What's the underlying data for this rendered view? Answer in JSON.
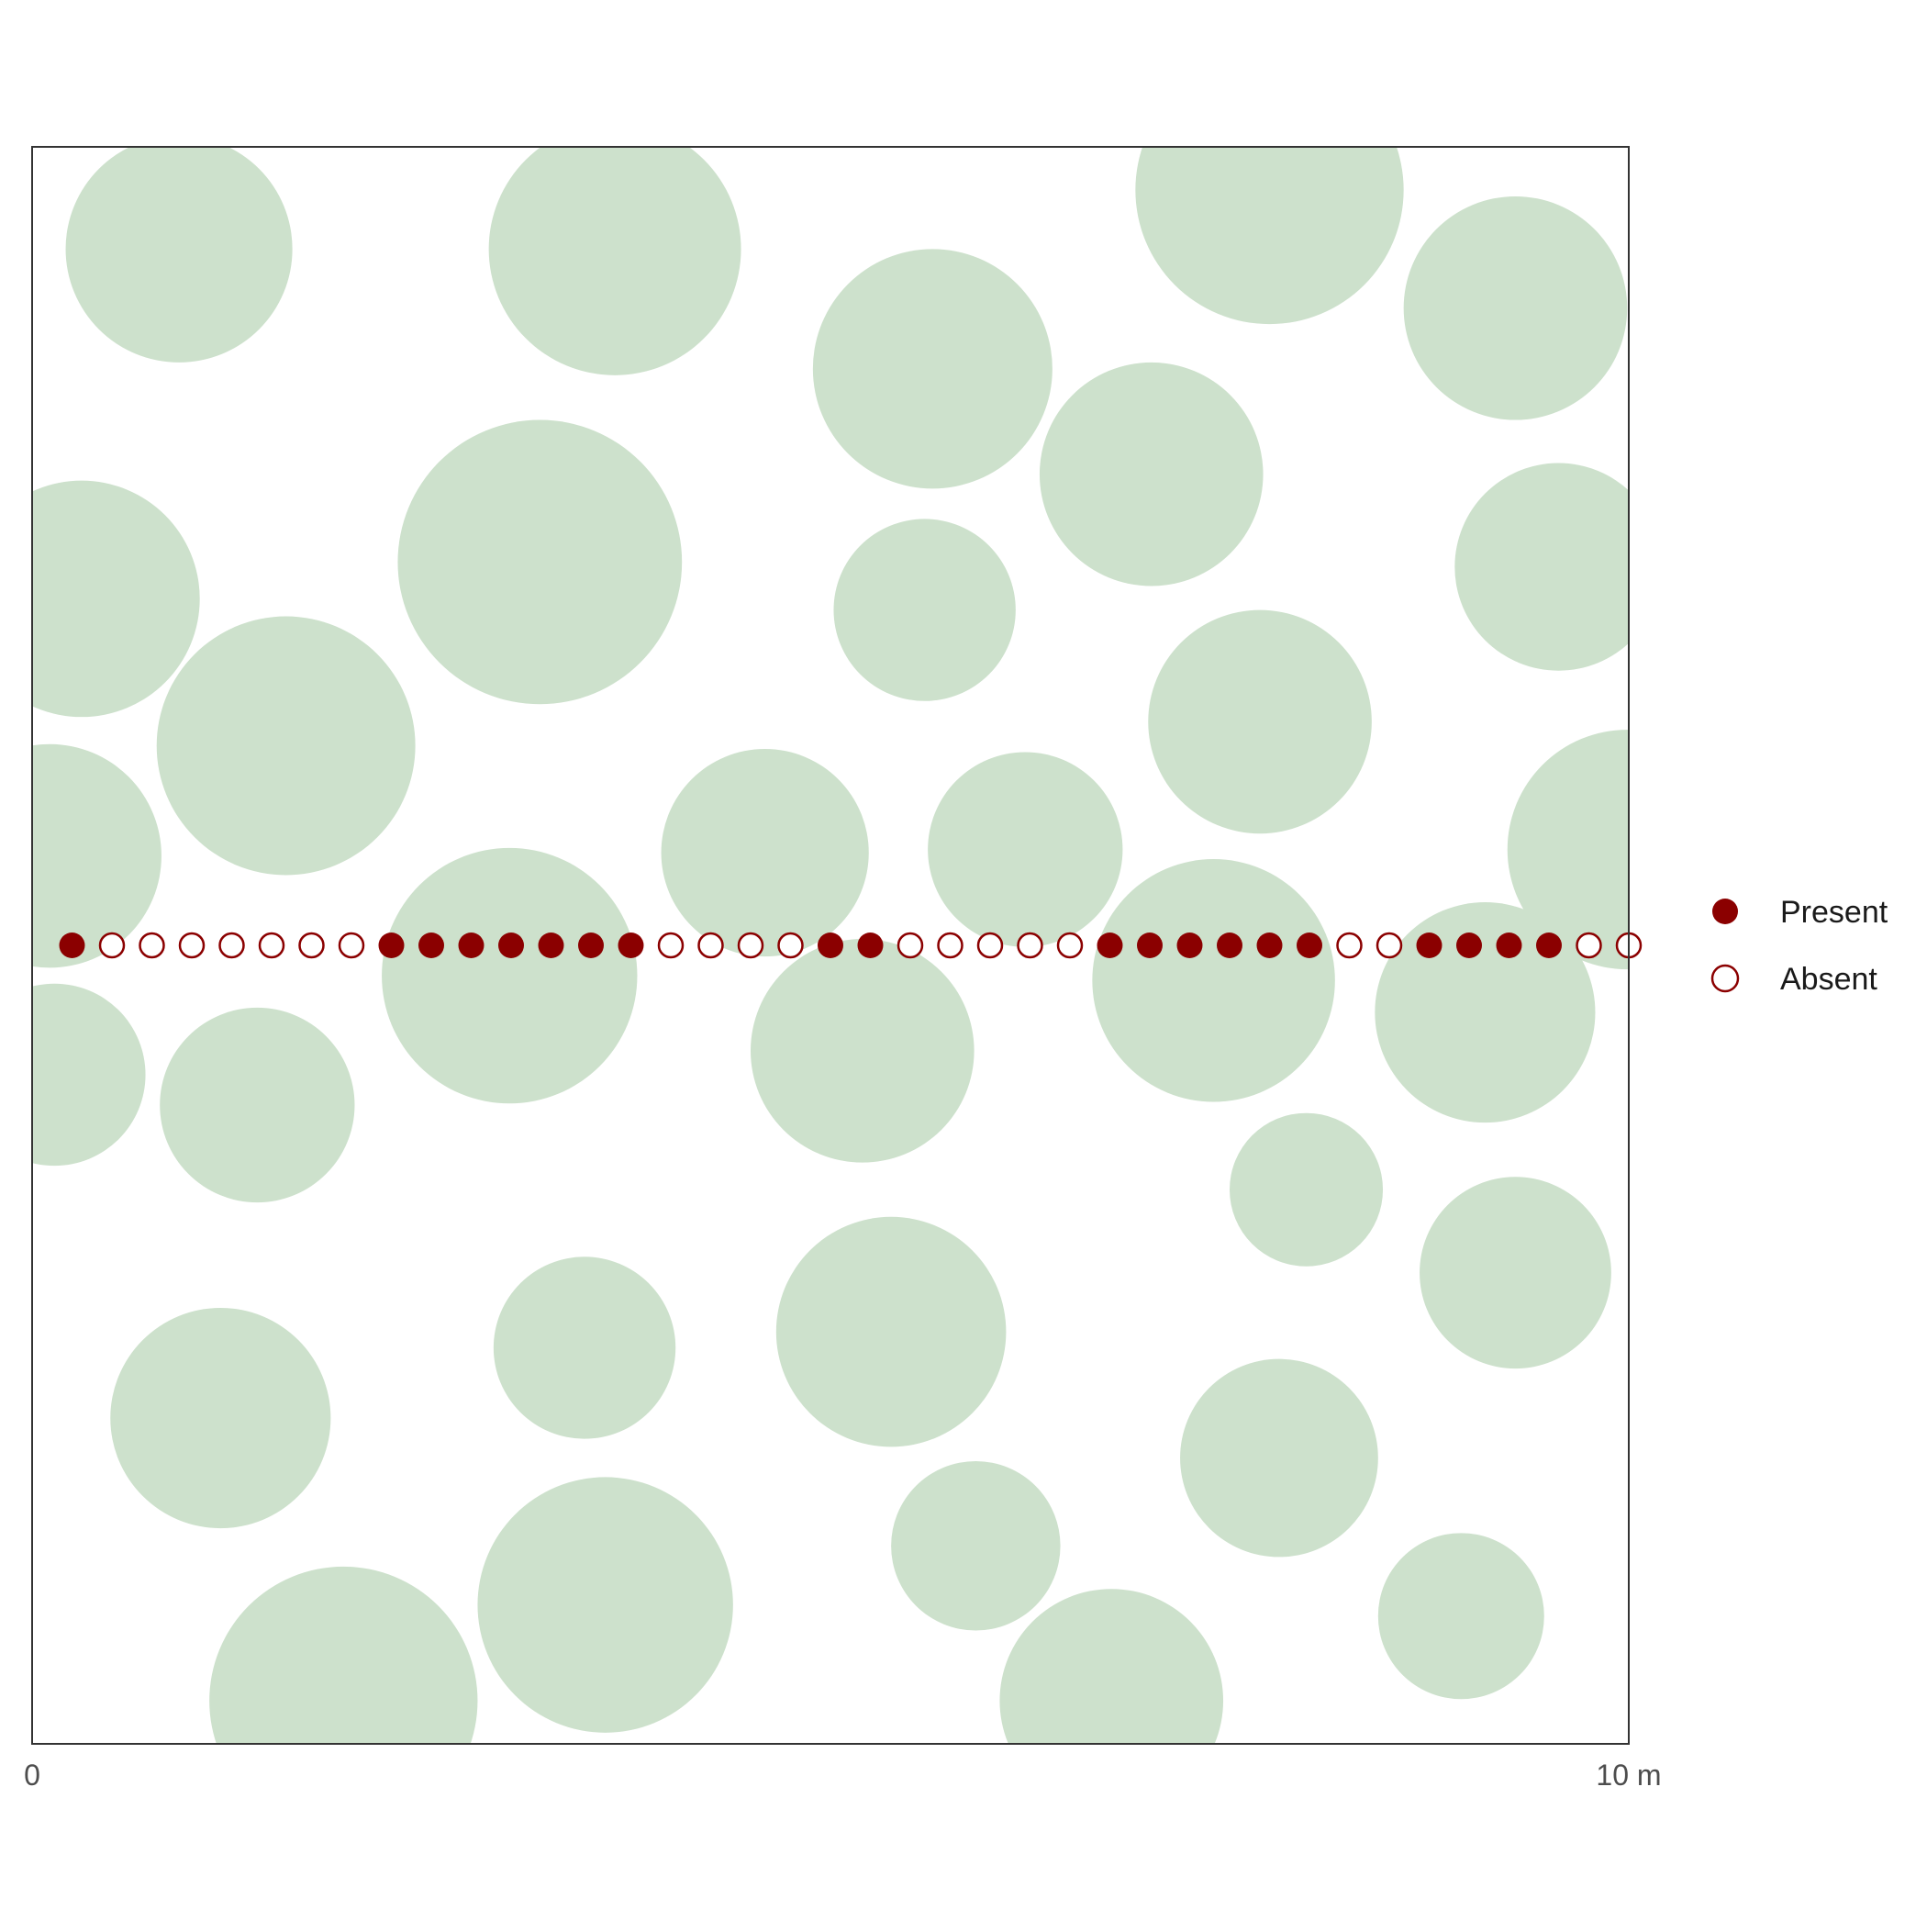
{
  "chart_data": {
    "type": "scatter",
    "xlabel": "",
    "ylabel": "",
    "xlim": [
      0,
      10
    ],
    "ylim": [
      0,
      10
    ],
    "x_tick_labels": [
      "0",
      "10 m"
    ],
    "grid": false,
    "legend_position": "right",
    "colors": {
      "canopy": "#cde1cc",
      "point": "#8b0000",
      "frame": "#333333"
    },
    "legend": [
      {
        "label": "Present",
        "marker": "filled"
      },
      {
        "label": "Absent",
        "marker": "open"
      }
    ],
    "canopy_circles": [
      {
        "x": 0.92,
        "y": 9.36,
        "r": 0.71
      },
      {
        "x": 3.65,
        "y": 9.36,
        "r": 0.79
      },
      {
        "x": 5.64,
        "y": 8.61,
        "r": 0.75
      },
      {
        "x": 7.75,
        "y": 9.73,
        "r": 0.84
      },
      {
        "x": 9.29,
        "y": 8.99,
        "r": 0.7
      },
      {
        "x": 0.31,
        "y": 7.17,
        "r": 0.74
      },
      {
        "x": 3.18,
        "y": 7.4,
        "r": 0.89
      },
      {
        "x": 7.01,
        "y": 7.95,
        "r": 0.7
      },
      {
        "x": 5.59,
        "y": 7.1,
        "r": 0.57
      },
      {
        "x": 9.56,
        "y": 7.37,
        "r": 0.65
      },
      {
        "x": 1.59,
        "y": 6.25,
        "r": 0.81
      },
      {
        "x": 7.69,
        "y": 6.4,
        "r": 0.7
      },
      {
        "x": 0.11,
        "y": 5.56,
        "r": 0.7
      },
      {
        "x": 4.59,
        "y": 5.58,
        "r": 0.65
      },
      {
        "x": 6.22,
        "y": 5.6,
        "r": 0.61
      },
      {
        "x": 9.99,
        "y": 5.6,
        "r": 0.75
      },
      {
        "x": 2.99,
        "y": 4.81,
        "r": 0.8
      },
      {
        "x": 7.4,
        "y": 4.78,
        "r": 0.76
      },
      {
        "x": 9.1,
        "y": 4.58,
        "r": 0.69
      },
      {
        "x": 0.14,
        "y": 4.19,
        "r": 0.57
      },
      {
        "x": 1.41,
        "y": 4.0,
        "r": 0.61
      },
      {
        "x": 5.2,
        "y": 4.34,
        "r": 0.7
      },
      {
        "x": 7.98,
        "y": 3.47,
        "r": 0.48
      },
      {
        "x": 9.29,
        "y": 2.95,
        "r": 0.6
      },
      {
        "x": 5.38,
        "y": 2.58,
        "r": 0.72
      },
      {
        "x": 3.46,
        "y": 2.48,
        "r": 0.57
      },
      {
        "x": 1.18,
        "y": 2.04,
        "r": 0.69
      },
      {
        "x": 7.81,
        "y": 1.79,
        "r": 0.62
      },
      {
        "x": 5.91,
        "y": 1.24,
        "r": 0.53
      },
      {
        "x": 3.59,
        "y": 0.87,
        "r": 0.8
      },
      {
        "x": 8.95,
        "y": 0.8,
        "r": 0.52
      },
      {
        "x": 1.95,
        "y": 0.27,
        "r": 0.84
      },
      {
        "x": 6.76,
        "y": 0.27,
        "r": 0.7
      }
    ],
    "transect": {
      "y": 5.0,
      "x_start": 0.25,
      "x_step": 0.25,
      "count": 40,
      "present": [
        1,
        0,
        0,
        0,
        0,
        0,
        0,
        0,
        1,
        1,
        1,
        1,
        1,
        1,
        1,
        0,
        0,
        0,
        0,
        1,
        1,
        0,
        0,
        0,
        0,
        0,
        1,
        1,
        1,
        1,
        1,
        1,
        0,
        0,
        1,
        1,
        1,
        1,
        0,
        0
      ]
    }
  }
}
